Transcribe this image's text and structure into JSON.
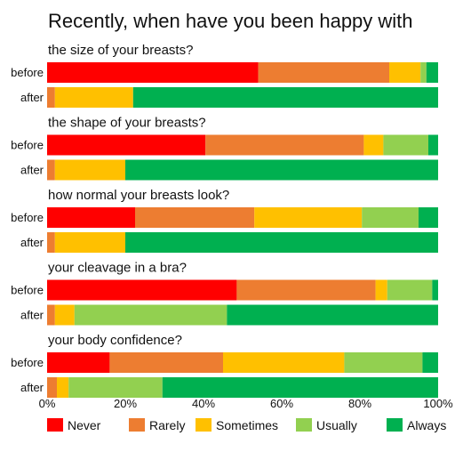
{
  "chart_data": {
    "type": "bar",
    "orientation": "horizontal",
    "stacked": "percent",
    "title": "Recently, when have you been happy with",
    "xlim": [
      0,
      100
    ],
    "xticks": [
      "0%",
      "20%",
      "40%",
      "60%",
      "80%",
      "100%"
    ],
    "grid": false,
    "legend_placement": "bottom",
    "row_labels": [
      "before",
      "after"
    ],
    "series": [
      {
        "name": "Never",
        "color": "#ff0000"
      },
      {
        "name": "Rarely",
        "color": "#ed7d31"
      },
      {
        "name": "Sometimes",
        "color": "#ffc000"
      },
      {
        "name": "Usually",
        "color": "#92d050"
      },
      {
        "name": "Always",
        "color": "#00b050"
      }
    ],
    "groups": [
      {
        "label": "the size of your breasts?",
        "before": [
          54,
          33.5,
          8,
          1.5,
          3
        ],
        "after": [
          0,
          2,
          20,
          0,
          78
        ]
      },
      {
        "label": "the shape of your breasts?",
        "before": [
          40.5,
          40.5,
          5,
          11.5,
          2.5
        ],
        "after": [
          0,
          2,
          18,
          0,
          80
        ]
      },
      {
        "label": "how normal your breasts look?",
        "before": [
          22.5,
          30.5,
          27.5,
          14.5,
          5
        ],
        "after": [
          0,
          2,
          18,
          0,
          80
        ]
      },
      {
        "label": "your cleavage in a bra?",
        "before": [
          48.5,
          35.5,
          3,
          11.5,
          1.5
        ],
        "after": [
          0,
          2,
          5,
          39,
          54
        ]
      },
      {
        "label": "your body confidence?",
        "before": [
          16,
          29,
          31,
          20,
          4
        ],
        "after": [
          0,
          2.5,
          3,
          24,
          70.5
        ]
      }
    ]
  }
}
